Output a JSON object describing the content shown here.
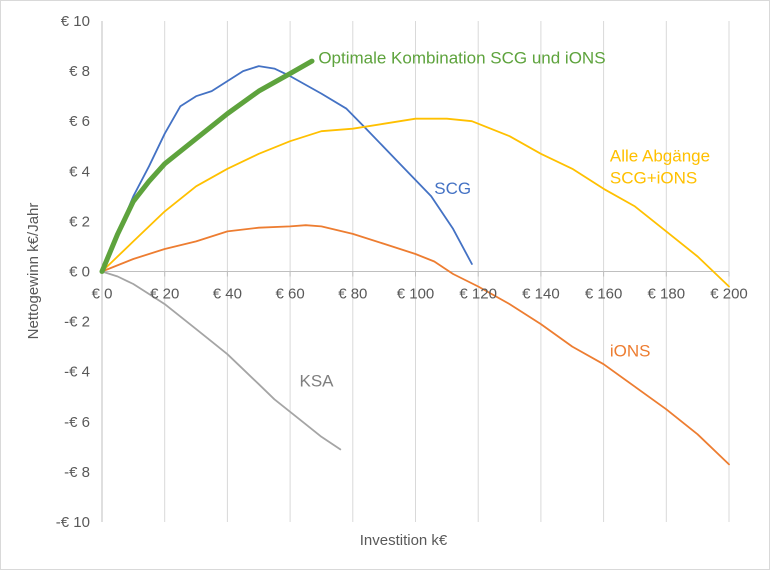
{
  "chart_data": {
    "type": "line",
    "title": "",
    "xlabel": "Investition k€",
    "ylabel": "Nettogewinn k€/Jahr",
    "xlim": [
      0,
      200
    ],
    "ylim": [
      -10,
      10
    ],
    "x_ticks": [
      0,
      20,
      40,
      60,
      80,
      100,
      120,
      140,
      160,
      180,
      200
    ],
    "x_tick_labels": [
      "€ 0",
      "€ 20",
      "€ 40",
      "€ 60",
      "€ 80",
      "€ 100",
      "€ 120",
      "€ 140",
      "€ 160",
      "€ 180",
      "€ 200"
    ],
    "y_ticks": [
      -10,
      -8,
      -6,
      -4,
      -2,
      0,
      2,
      4,
      6,
      8,
      10
    ],
    "y_tick_labels": [
      "-€ 10",
      "-€ 8",
      "-€ 6",
      "-€ 4",
      "-€ 2",
      "€ 0",
      "€ 2",
      "€ 4",
      "€ 6",
      "€ 8",
      "€ 10"
    ],
    "grid": "vertical",
    "legend": "none",
    "series": [
      {
        "name": "SCG",
        "color": "#4472c4",
        "points": [
          [
            0,
            0
          ],
          [
            5,
            1.5
          ],
          [
            10,
            3
          ],
          [
            15,
            4.2
          ],
          [
            20,
            5.5
          ],
          [
            25,
            6.6
          ],
          [
            30,
            7
          ],
          [
            35,
            7.2
          ],
          [
            40,
            7.6
          ],
          [
            45,
            8
          ],
          [
            50,
            8.2
          ],
          [
            55,
            8.1
          ],
          [
            60,
            7.8
          ],
          [
            70,
            7.1
          ],
          [
            78,
            6.5
          ],
          [
            85,
            5.6
          ],
          [
            95,
            4.3
          ],
          [
            105,
            3
          ],
          [
            112,
            1.7
          ],
          [
            118,
            0.3
          ]
        ]
      },
      {
        "name": "Alle Abgänge SCG+iONS",
        "color": "#ffc000",
        "points": [
          [
            0,
            0
          ],
          [
            10,
            1.2
          ],
          [
            20,
            2.4
          ],
          [
            30,
            3.4
          ],
          [
            40,
            4.1
          ],
          [
            50,
            4.7
          ],
          [
            60,
            5.2
          ],
          [
            70,
            5.6
          ],
          [
            80,
            5.7
          ],
          [
            90,
            5.9
          ],
          [
            100,
            6.1
          ],
          [
            110,
            6.1
          ],
          [
            118,
            6
          ],
          [
            130,
            5.4
          ],
          [
            140,
            4.7
          ],
          [
            150,
            4.1
          ],
          [
            160,
            3.3
          ],
          [
            170,
            2.6
          ],
          [
            180,
            1.6
          ],
          [
            190,
            0.6
          ],
          [
            200,
            -0.6
          ]
        ]
      },
      {
        "name": "iONS",
        "color": "#ed7d31",
        "points": [
          [
            0,
            0
          ],
          [
            10,
            0.5
          ],
          [
            20,
            0.9
          ],
          [
            30,
            1.2
          ],
          [
            40,
            1.6
          ],
          [
            50,
            1.75
          ],
          [
            60,
            1.8
          ],
          [
            65,
            1.85
          ],
          [
            70,
            1.8
          ],
          [
            80,
            1.5
          ],
          [
            90,
            1.1
          ],
          [
            100,
            0.7
          ],
          [
            106,
            0.4
          ],
          [
            112,
            -0.1
          ],
          [
            120,
            -0.6
          ],
          [
            130,
            -1.3
          ],
          [
            140,
            -2.1
          ],
          [
            150,
            -3
          ],
          [
            160,
            -3.7
          ],
          [
            170,
            -4.6
          ],
          [
            180,
            -5.5
          ],
          [
            190,
            -6.5
          ],
          [
            200,
            -7.7
          ]
        ]
      },
      {
        "name": "KSA",
        "color": "#a5a5a5",
        "points": [
          [
            0,
            0
          ],
          [
            5,
            -0.2
          ],
          [
            10,
            -0.5
          ],
          [
            15,
            -0.9
          ],
          [
            20,
            -1.3
          ],
          [
            25,
            -1.8
          ],
          [
            30,
            -2.3
          ],
          [
            35,
            -2.8
          ],
          [
            40,
            -3.3
          ],
          [
            45,
            -3.9
          ],
          [
            50,
            -4.5
          ],
          [
            55,
            -5.1
          ],
          [
            60,
            -5.6
          ],
          [
            65,
            -6.1
          ],
          [
            70,
            -6.6
          ],
          [
            76,
            -7.1
          ]
        ]
      },
      {
        "name": "Optimale Kombination SCG und iONS",
        "color": "#5ea33d",
        "points": [
          [
            0,
            0
          ],
          [
            5,
            1.5
          ],
          [
            10,
            2.8
          ],
          [
            15,
            3.6
          ],
          [
            20,
            4.3
          ],
          [
            30,
            5.3
          ],
          [
            40,
            6.3
          ],
          [
            50,
            7.2
          ],
          [
            60,
            7.9
          ],
          [
            67,
            8.4
          ]
        ]
      }
    ],
    "annotations": [
      {
        "lines": [
          "Optimale Kombination SCG und iONS"
        ],
        "color": "#5ea33d",
        "x": 69,
        "y": 8.3,
        "anchor": "start"
      },
      {
        "lines": [
          "SCG"
        ],
        "color": "#4472c4",
        "x": 106,
        "y": 3.1,
        "anchor": "start"
      },
      {
        "lines": [
          "Alle Abgänge",
          "SCG+iONS"
        ],
        "color": "#ffc000",
        "x": 162,
        "y": 4.4,
        "anchor": "start"
      },
      {
        "lines": [
          "iONS"
        ],
        "color": "#ed7d31",
        "x": 162,
        "y": -3.4,
        "anchor": "start"
      },
      {
        "lines": [
          "KSA"
        ],
        "color": "#7f7f7f",
        "x": 63,
        "y": -4.6,
        "anchor": "start"
      }
    ]
  }
}
